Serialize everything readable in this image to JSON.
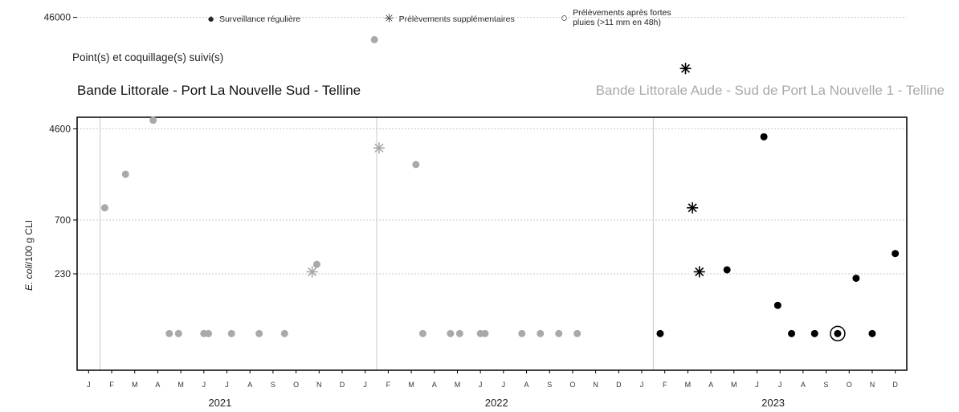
{
  "legend": {
    "regular": {
      "symbol": "●",
      "label": "Surveillance régulière"
    },
    "extra": {
      "symbol": "✳",
      "label": "Prélèvements supplémentaires"
    },
    "rain": {
      "symbol": "○",
      "label_line1": "Prélèvements après fortes",
      "label_line2": "pluies (>11 mm en 48h)"
    }
  },
  "subtitle": "Point(s) et coquillage(s) suivi(s)",
  "series_titles": [
    "Bande Littorale - Port La Nouvelle Sud - Telline",
    "Bande Littorale Aude - Sud de Port La Nouvelle 1 - Telline"
  ],
  "colors": {
    "series_a": "#000000",
    "series_b": "#a9a9a9",
    "grid": "#c8c8c8",
    "frame": "#000000"
  },
  "chart_data": {
    "type": "scatter",
    "title": "",
    "xlabel": "",
    "ylabel_italic": "E. coli",
    "ylabel_rest": "/100 g CLI",
    "y_scale": "log",
    "y_ticks": [
      230,
      700,
      4600,
      46000
    ],
    "y_tick_labels": [
      "230",
      "700",
      "4600",
      "46000"
    ],
    "x_month_labels": [
      "J",
      "F",
      "M",
      "A",
      "M",
      "J",
      "J",
      "A",
      "S",
      "O",
      "N",
      "D",
      "J",
      "F",
      "M",
      "A",
      "M",
      "J",
      "J",
      "A",
      "S",
      "O",
      "N",
      "D",
      "J",
      "F",
      "M",
      "A",
      "M",
      "J",
      "J",
      "A",
      "S",
      "O",
      "N",
      "D"
    ],
    "x_years": [
      "2021",
      "2022",
      "2023"
    ],
    "x_range_months": [
      0,
      36
    ],
    "series": [
      {
        "name": "Bande Littorale - Port La Nouvelle Sud - Telline",
        "points": [
          {
            "month": 25.3,
            "value": 67,
            "type": "regular"
          },
          {
            "month": 26.7,
            "value": 900,
            "type": "extra"
          },
          {
            "month": 26.4,
            "value": 16000,
            "type": "extra"
          },
          {
            "month": 27.0,
            "value": 240,
            "type": "extra"
          },
          {
            "month": 28.2,
            "value": 250,
            "type": "regular"
          },
          {
            "month": 29.8,
            "value": 3900,
            "type": "regular"
          },
          {
            "month": 30.4,
            "value": 120,
            "type": "regular"
          },
          {
            "month": 31.0,
            "value": 67,
            "type": "regular"
          },
          {
            "month": 32.0,
            "value": 67,
            "type": "regular"
          },
          {
            "month": 33.0,
            "value": 67,
            "type": "regular"
          },
          {
            "month": 33.0,
            "value": 67,
            "type": "rain"
          },
          {
            "month": 33.8,
            "value": 210,
            "type": "regular"
          },
          {
            "month": 34.5,
            "value": 67,
            "type": "regular"
          },
          {
            "month": 35.5,
            "value": 350,
            "type": "regular"
          }
        ]
      },
      {
        "name": "Bande Littorale Aude - Sud de Port La Nouvelle 1 - Telline",
        "points": [
          {
            "month": 1.2,
            "value": 900,
            "type": "regular"
          },
          {
            "month": 2.1,
            "value": 1800,
            "type": "regular"
          },
          {
            "month": 3.3,
            "value": 5500,
            "type": "regular"
          },
          {
            "month": 4.0,
            "value": 67,
            "type": "regular"
          },
          {
            "month": 4.4,
            "value": 67,
            "type": "regular"
          },
          {
            "month": 5.5,
            "value": 67,
            "type": "regular"
          },
          {
            "month": 5.7,
            "value": 67,
            "type": "regular"
          },
          {
            "month": 6.7,
            "value": 67,
            "type": "regular"
          },
          {
            "month": 7.9,
            "value": 67,
            "type": "regular"
          },
          {
            "month": 9.0,
            "value": 67,
            "type": "regular"
          },
          {
            "month": 10.2,
            "value": 240,
            "type": "extra"
          },
          {
            "month": 10.4,
            "value": 280,
            "type": "regular"
          },
          {
            "month": 12.9,
            "value": 29000,
            "type": "regular"
          },
          {
            "month": 13.1,
            "value": 3100,
            "type": "extra"
          },
          {
            "month": 14.7,
            "value": 2200,
            "type": "regular"
          },
          {
            "month": 15.0,
            "value": 67,
            "type": "regular"
          },
          {
            "month": 16.2,
            "value": 67,
            "type": "regular"
          },
          {
            "month": 16.6,
            "value": 67,
            "type": "regular"
          },
          {
            "month": 17.5,
            "value": 67,
            "type": "regular"
          },
          {
            "month": 17.7,
            "value": 67,
            "type": "regular"
          },
          {
            "month": 19.3,
            "value": 67,
            "type": "regular"
          },
          {
            "month": 20.1,
            "value": 67,
            "type": "regular"
          },
          {
            "month": 20.9,
            "value": 67,
            "type": "regular"
          },
          {
            "month": 21.7,
            "value": 67,
            "type": "regular"
          }
        ]
      }
    ]
  }
}
